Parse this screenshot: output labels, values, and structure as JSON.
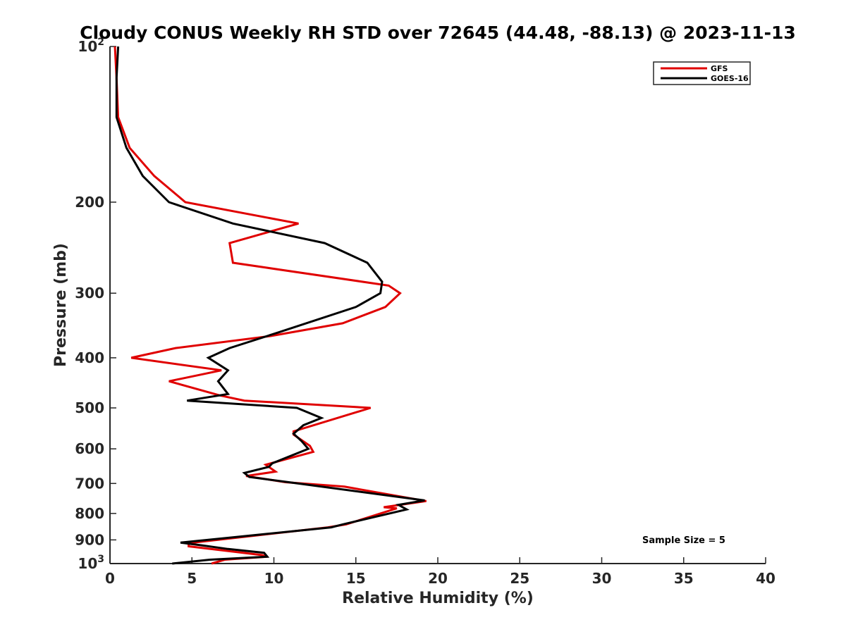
{
  "chart_data": {
    "type": "line",
    "title": "Cloudy CONUS Weekly RH STD over 72645 (44.48, -88.13) @ 2023-11-13",
    "xlabel": "Relative Humidity (%)",
    "ylabel": "Pressure (mb)",
    "xlim": [
      0,
      40
    ],
    "ylim": [
      100,
      1000
    ],
    "yscale": "log",
    "y_reversed": true,
    "grid": false,
    "legend_position": "top-right",
    "xticks": [
      "0",
      "5",
      "10",
      "15",
      "20",
      "25",
      "30",
      "35",
      "40"
    ],
    "xtick_values": [
      0,
      5,
      10,
      15,
      20,
      25,
      30,
      35,
      40
    ],
    "yticks": [
      {
        "base": "10",
        "exp": "2",
        "value": 100
      },
      {
        "base": "200",
        "exp": "",
        "value": 200
      },
      {
        "base": "300",
        "exp": "",
        "value": 300
      },
      {
        "base": "400",
        "exp": "",
        "value": 400
      },
      {
        "base": "500",
        "exp": "",
        "value": 500
      },
      {
        "base": "600",
        "exp": "",
        "value": 600
      },
      {
        "base": "700",
        "exp": "",
        "value": 700
      },
      {
        "base": "800",
        "exp": "",
        "value": 800
      },
      {
        "base": "900",
        "exp": "",
        "value": 900
      },
      {
        "base": "10",
        "exp": "3",
        "value": 1000
      }
    ],
    "annotation": "Sample Size = 5",
    "series": [
      {
        "name": "GFS",
        "color": "#e00000",
        "points": [
          [
            0.3,
            100
          ],
          [
            0.4,
            115
          ],
          [
            0.5,
            137
          ],
          [
            1.2,
            157
          ],
          [
            2.7,
            178
          ],
          [
            4.6,
            200
          ],
          [
            11.5,
            220
          ],
          [
            7.3,
            240
          ],
          [
            7.5,
            262
          ],
          [
            17.0,
            290
          ],
          [
            17.7,
            300
          ],
          [
            16.8,
            319
          ],
          [
            14.2,
            343
          ],
          [
            9.8,
            363
          ],
          [
            4.0,
            383
          ],
          [
            1.3,
            400
          ],
          [
            6.8,
            423
          ],
          [
            3.6,
            444
          ],
          [
            6.7,
            473
          ],
          [
            8.2,
            484
          ],
          [
            15.9,
            500
          ],
          [
            11.2,
            555
          ],
          [
            11.2,
            563
          ],
          [
            12.2,
            592
          ],
          [
            12.4,
            608
          ],
          [
            9.5,
            644
          ],
          [
            10.1,
            664
          ],
          [
            8.3,
            677
          ],
          [
            10.7,
            696
          ],
          [
            14.3,
            710
          ],
          [
            19.3,
            757
          ],
          [
            16.7,
            778
          ],
          [
            17.5,
            782
          ],
          [
            14.4,
            840
          ],
          [
            13.3,
            851
          ],
          [
            4.8,
            913
          ],
          [
            4.8,
            926
          ],
          [
            9.3,
            963
          ],
          [
            9.6,
            970
          ],
          [
            7.0,
            983
          ],
          [
            6.2,
            1000
          ]
        ]
      },
      {
        "name": "GOES-16",
        "color": "#000000",
        "points": [
          [
            0.5,
            100
          ],
          [
            0.4,
            115
          ],
          [
            0.4,
            137
          ],
          [
            1.0,
            157
          ],
          [
            2.0,
            178
          ],
          [
            3.6,
            200
          ],
          [
            7.5,
            220
          ],
          [
            13.1,
            240
          ],
          [
            15.7,
            262
          ],
          [
            16.6,
            285
          ],
          [
            16.5,
            300
          ],
          [
            15.0,
            319
          ],
          [
            10.3,
            357
          ],
          [
            7.3,
            383
          ],
          [
            6.0,
            400
          ],
          [
            7.2,
            423
          ],
          [
            6.6,
            444
          ],
          [
            7.2,
            470
          ],
          [
            4.7,
            484
          ],
          [
            11.4,
            500
          ],
          [
            12.9,
            523
          ],
          [
            11.8,
            540
          ],
          [
            11.2,
            561
          ],
          [
            11.7,
            580
          ],
          [
            12.1,
            600
          ],
          [
            9.9,
            640
          ],
          [
            9.7,
            650
          ],
          [
            8.2,
            668
          ],
          [
            8.5,
            680
          ],
          [
            10.9,
            696
          ],
          [
            19.2,
            755
          ],
          [
            17.6,
            770
          ],
          [
            18.1,
            786
          ],
          [
            14.2,
            840
          ],
          [
            13.5,
            851
          ],
          [
            4.3,
            911
          ],
          [
            5.6,
            922
          ],
          [
            7.2,
            937
          ],
          [
            9.4,
            953
          ],
          [
            9.6,
            970
          ],
          [
            6.1,
            983
          ],
          [
            3.8,
            1000
          ]
        ]
      }
    ]
  }
}
